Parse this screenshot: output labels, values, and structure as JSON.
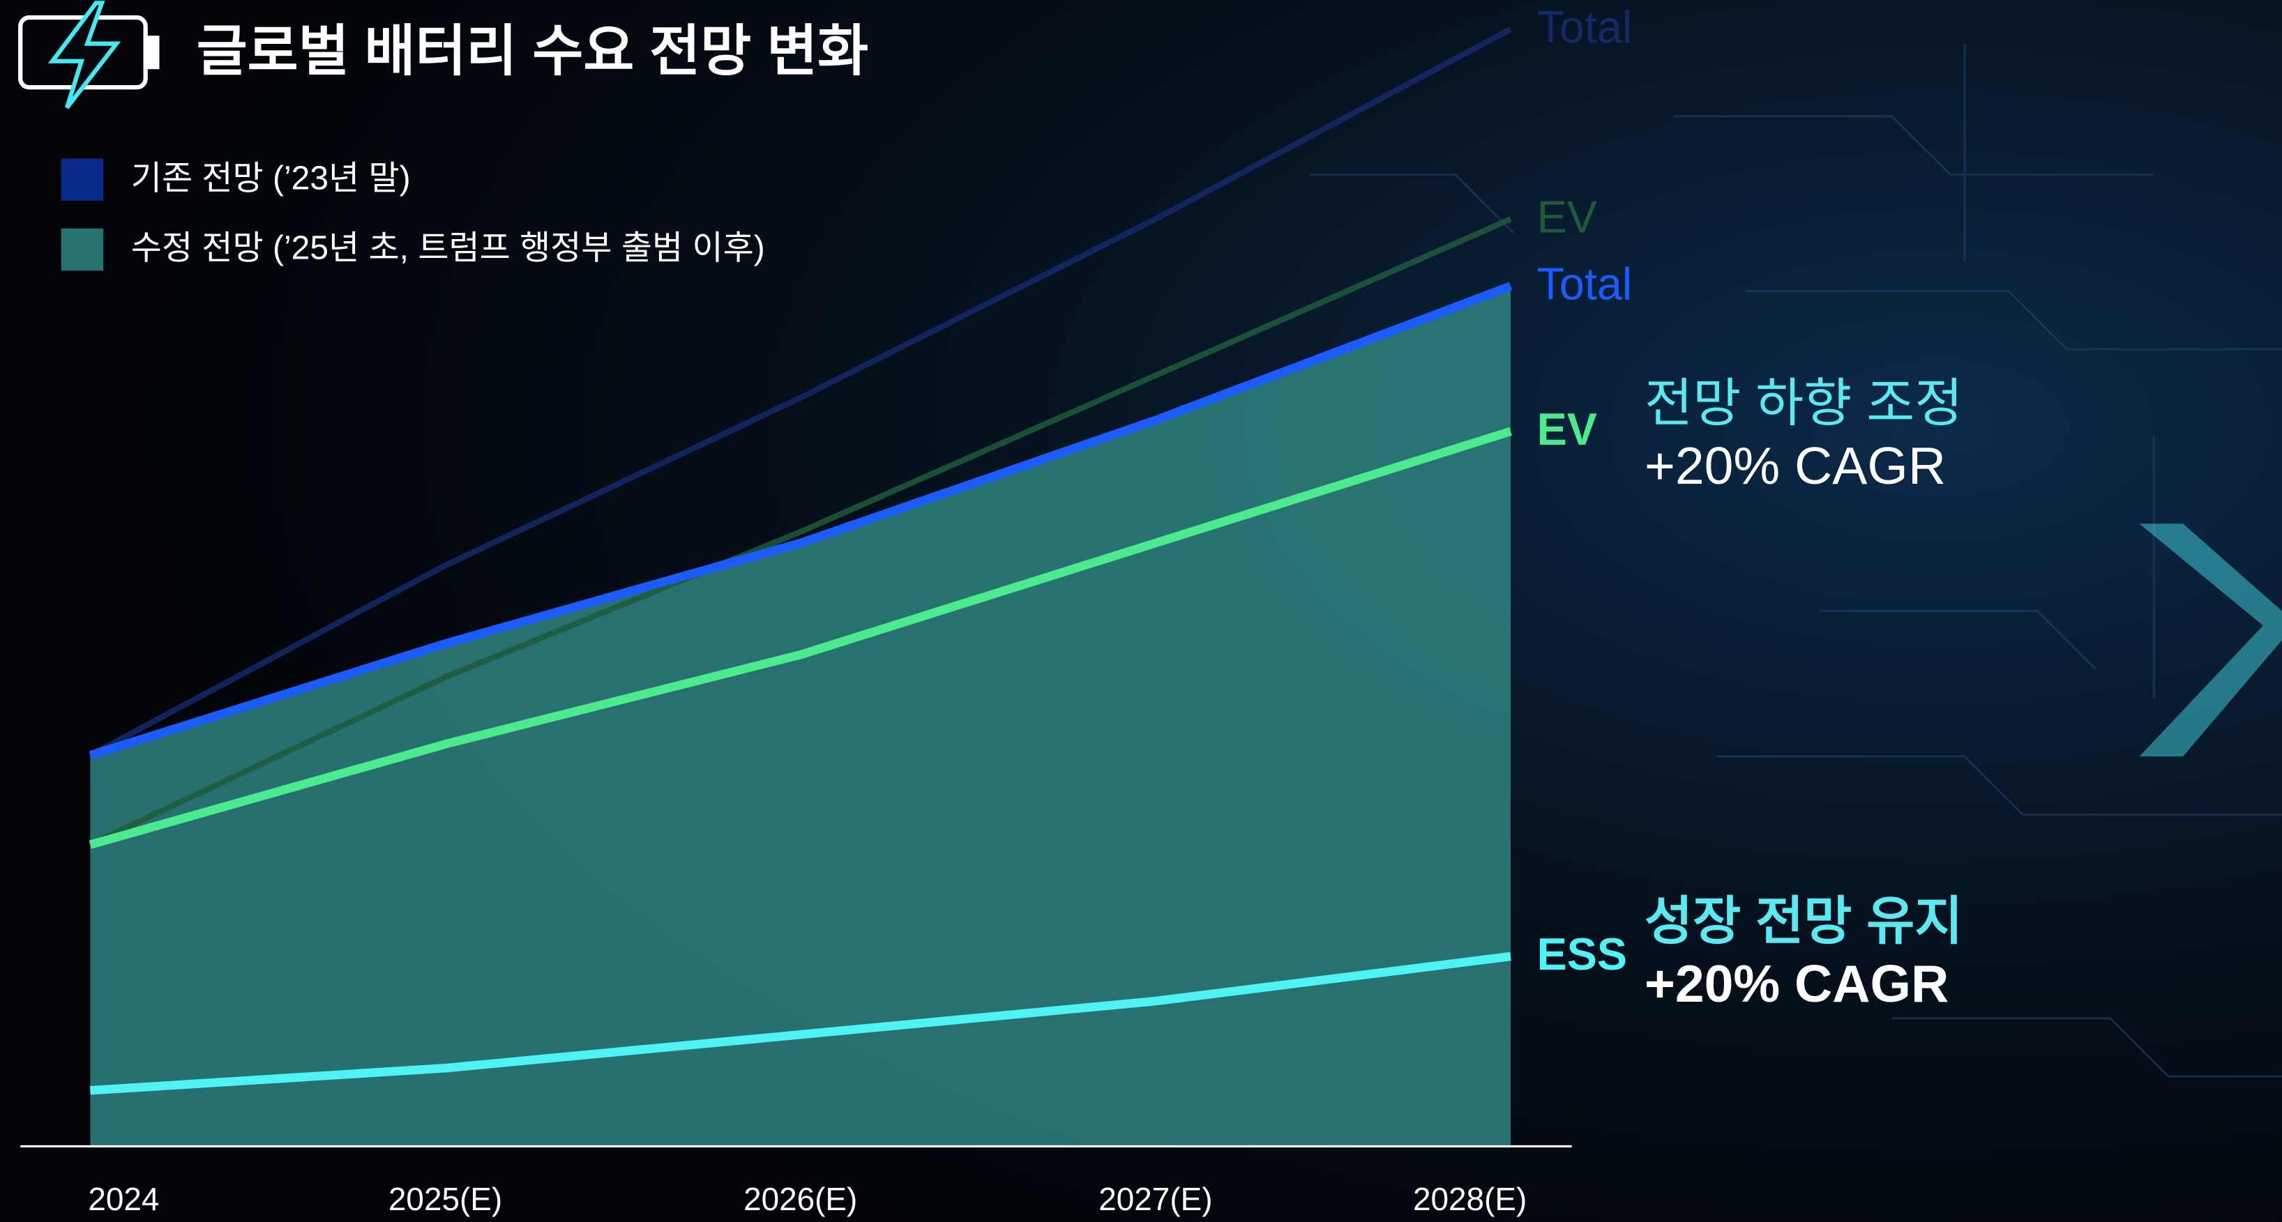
{
  "chart_data": {
    "type": "line",
    "title": "글로벌 배터리 수요 전망 변화",
    "categories": [
      "2024",
      "2025(E)",
      "2026(E)",
      "2027(E)",
      "2028(E)"
    ],
    "ylim": [
      0,
      100
    ],
    "legend": [
      {
        "name": "기존 전망 (’23년 말)",
        "color": "#0a2a8c"
      },
      {
        "name": "수정 전망 (’25년 초, 트럼프 행정부 출범 이후)",
        "color": "#2a7272"
      }
    ],
    "area_color": "#2e7f7d",
    "series": [
      {
        "name": "Total",
        "color": "#14296a",
        "values": [
          35,
          52,
          67,
          83,
          100
        ]
      },
      {
        "name": "EV",
        "color": "#1f5a3c",
        "values": [
          27,
          42,
          55,
          69,
          83
        ]
      },
      {
        "name": "Total",
        "color": "#1a5cff",
        "values": [
          35,
          45,
          54,
          65,
          77
        ]
      },
      {
        "name": "EV",
        "color": "#4cea8e",
        "values": [
          27,
          36,
          44,
          54,
          64
        ]
      },
      {
        "name": "ESS",
        "color": "#4ff2f5",
        "values": [
          5,
          7,
          10,
          13,
          17
        ]
      }
    ],
    "annotations": [
      {
        "lines": [
          "전망 하향 조정",
          "+20% CAGR"
        ]
      },
      {
        "lines": [
          "성장 전망 유지",
          "+20% CAGR"
        ]
      }
    ]
  }
}
